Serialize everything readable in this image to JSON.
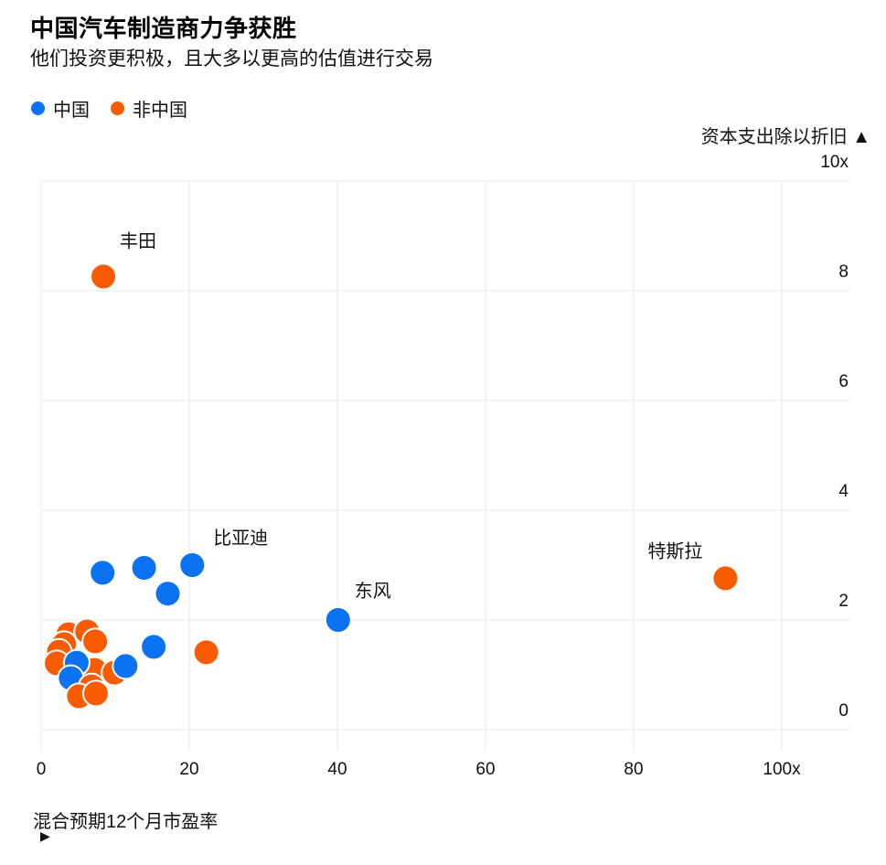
{
  "header": {
    "title": "中国汽车制造商力争获胜",
    "subtitle": "他们投资更积极，且大多以更高的估值进行交易"
  },
  "legend": {
    "items": [
      {
        "label": "中国",
        "color": "#0b72f2"
      },
      {
        "label": "非中国",
        "color": "#f85c03"
      }
    ]
  },
  "axes": {
    "y_title": "资本支出除以折旧 ▲",
    "x_title": "混合预期12个月市盈率",
    "x_title_arrow": "▶"
  },
  "colors": {
    "china_blue": "#0b72f2",
    "non_china_orange": "#f85c03",
    "gridline": "#e8e8e8",
    "text": "#111111"
  },
  "chart_data": {
    "type": "scatter",
    "title": "中国汽车制造商力争获胜",
    "xlabel": "混合预期12个月市盈率",
    "ylabel": "资本支出除以折旧",
    "xlim": [
      0,
      100
    ],
    "ylim": [
      0,
      10
    ],
    "x_ticks": [
      0,
      20,
      40,
      60,
      80,
      100
    ],
    "x_tick_labels": [
      "0",
      "20",
      "40",
      "60",
      "80",
      "100x"
    ],
    "y_ticks": [
      0,
      2,
      4,
      6,
      8,
      10
    ],
    "y_tick_labels": [
      "0",
      "2",
      "4",
      "6",
      "8",
      "10x"
    ],
    "grid": true,
    "legend_position": "top-left",
    "series": [
      {
        "name": "中国",
        "color": "#0b72f2",
        "points": [
          {
            "x": 8.3,
            "y": 2.86
          },
          {
            "x": 13.9,
            "y": 2.95
          },
          {
            "x": 20.4,
            "y": 3.0,
            "label": "比亚迪",
            "label_dx": 23,
            "label_dy": -23
          },
          {
            "x": 17.1,
            "y": 2.48
          },
          {
            "x": 40.1,
            "y": 2.0,
            "label": "东风",
            "label_dx": 18,
            "label_dy": -25
          },
          {
            "x": 15.2,
            "y": 1.51
          },
          {
            "x": 11.4,
            "y": 1.16
          },
          {
            "x": 4.8,
            "y": 1.22
          },
          {
            "x": 4.0,
            "y": 0.94
          }
        ]
      },
      {
        "name": "非中国",
        "color": "#f85c03",
        "points": [
          {
            "x": 8.4,
            "y": 8.26,
            "label": "丰田",
            "label_dx": 18,
            "label_dy": -32
          },
          {
            "x": 92.4,
            "y": 2.76,
            "label": "特斯拉",
            "label_dx": -85,
            "label_dy": -23
          },
          {
            "x": 22.3,
            "y": 1.41
          },
          {
            "x": 3.7,
            "y": 1.74
          },
          {
            "x": 6.2,
            "y": 1.79
          },
          {
            "x": 7.3,
            "y": 1.61
          },
          {
            "x": 3.1,
            "y": 1.56
          },
          {
            "x": 2.4,
            "y": 1.42
          },
          {
            "x": 2.1,
            "y": 1.21
          },
          {
            "x": 7.2,
            "y": 1.09
          },
          {
            "x": 9.9,
            "y": 1.04
          },
          {
            "x": 6.8,
            "y": 0.79,
            "z": 1
          },
          {
            "x": 5.1,
            "y": 0.61,
            "z": 1
          },
          {
            "x": 7.4,
            "y": 0.66,
            "z": 1
          }
        ]
      }
    ]
  }
}
